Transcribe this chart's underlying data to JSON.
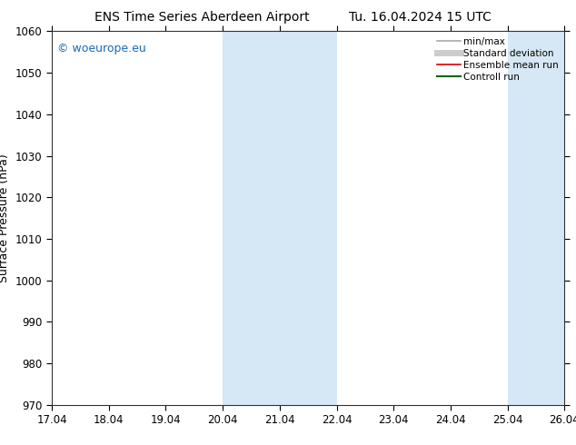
{
  "title_left": "ENS Time Series Aberdeen Airport",
  "title_right": "Tu. 16.04.2024 15 UTC",
  "ylabel": "Surface Pressure (hPa)",
  "ylim": [
    970,
    1060
  ],
  "yticks": [
    970,
    980,
    990,
    1000,
    1010,
    1020,
    1030,
    1040,
    1050,
    1060
  ],
  "xlim_start": 0,
  "xlim_end": 9,
  "xtick_labels": [
    "17.04",
    "18.04",
    "19.04",
    "20.04",
    "21.04",
    "22.04",
    "23.04",
    "24.04",
    "25.04",
    "26.04"
  ],
  "shaded_bands": [
    {
      "x_start": 3.0,
      "x_end": 5.0
    },
    {
      "x_start": 8.0,
      "x_end": 9.0
    }
  ],
  "band_color": "#d6e8f5",
  "background_color": "#ffffff",
  "watermark": "© woeurope.eu",
  "watermark_color": "#1a6bb5",
  "legend_entries": [
    {
      "label": "min/max",
      "color": "#aaaaaa",
      "lw": 1.2,
      "style": "-"
    },
    {
      "label": "Standard deviation",
      "color": "#cccccc",
      "lw": 5,
      "style": "-"
    },
    {
      "label": "Ensemble mean run",
      "color": "#dd0000",
      "lw": 1.2,
      "style": "-"
    },
    {
      "label": "Controll run",
      "color": "#006600",
      "lw": 1.5,
      "style": "-"
    }
  ],
  "title_fontsize": 10,
  "axis_label_fontsize": 9,
  "tick_fontsize": 8.5,
  "legend_fontsize": 7.5,
  "watermark_fontsize": 9
}
